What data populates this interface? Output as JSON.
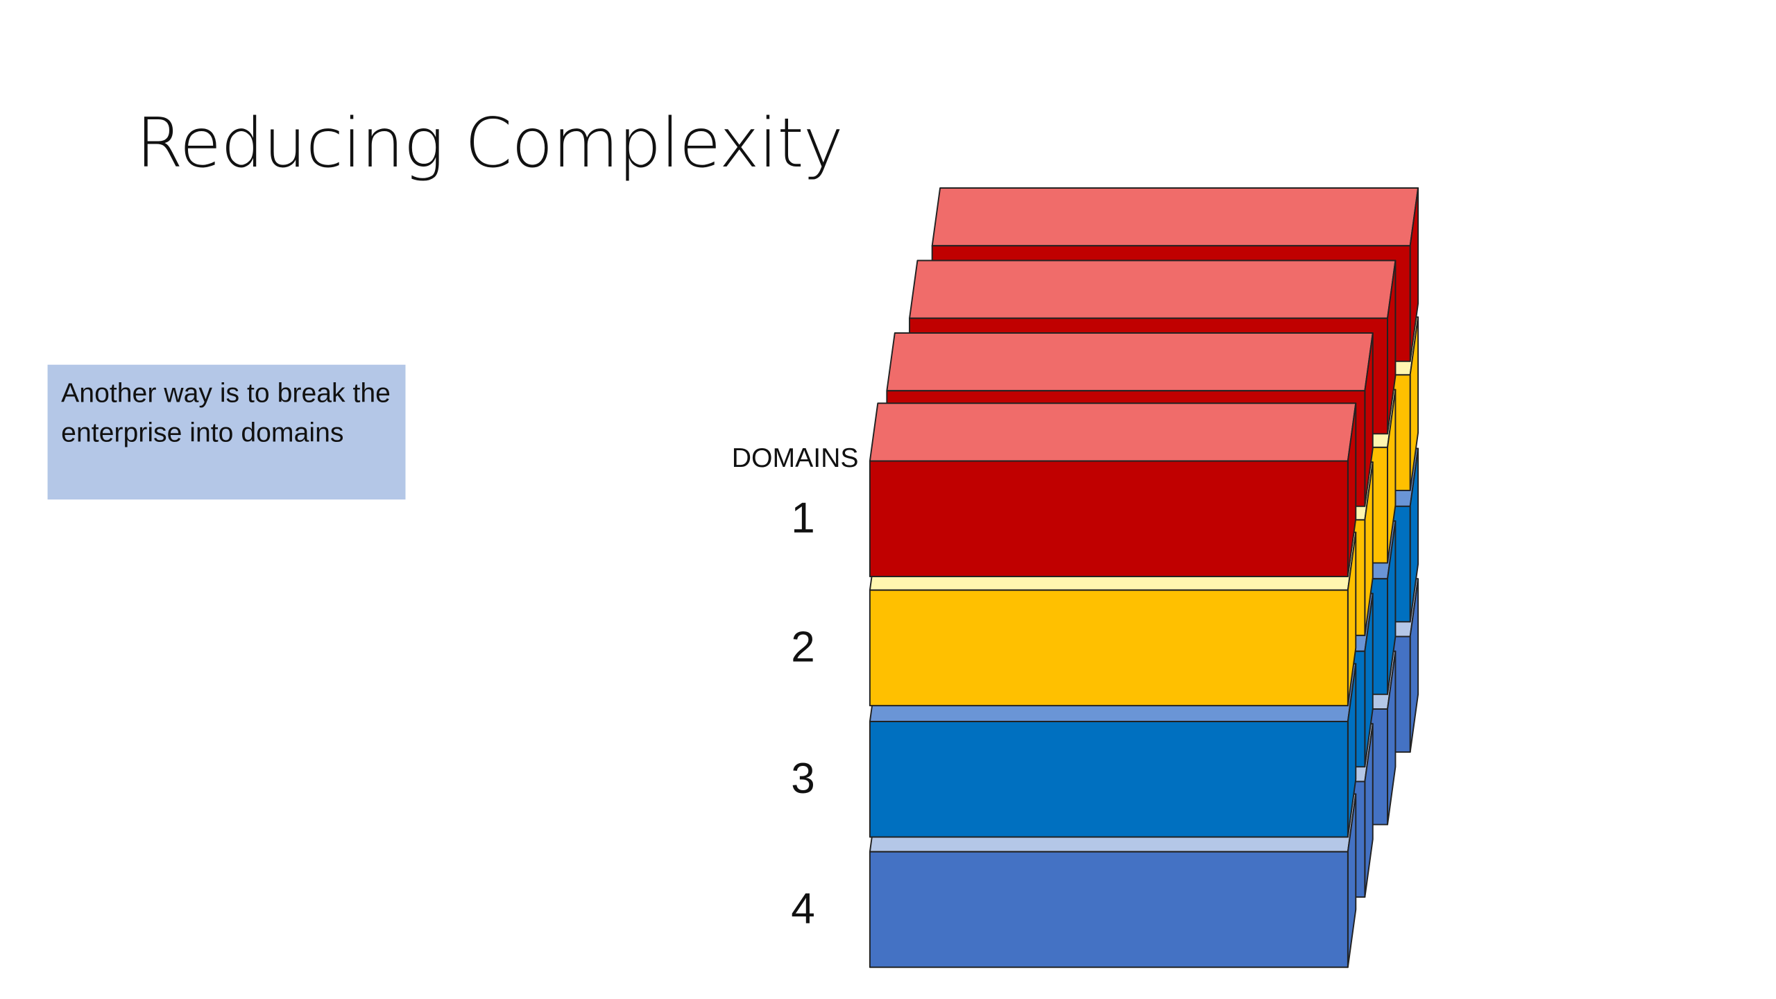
{
  "title": "Reducing Complexity",
  "callout": "Another way is to break the enterprise into domains",
  "diagram": {
    "heading": "DOMAINS",
    "layers": [
      "1",
      "2",
      "3",
      "4"
    ]
  }
}
